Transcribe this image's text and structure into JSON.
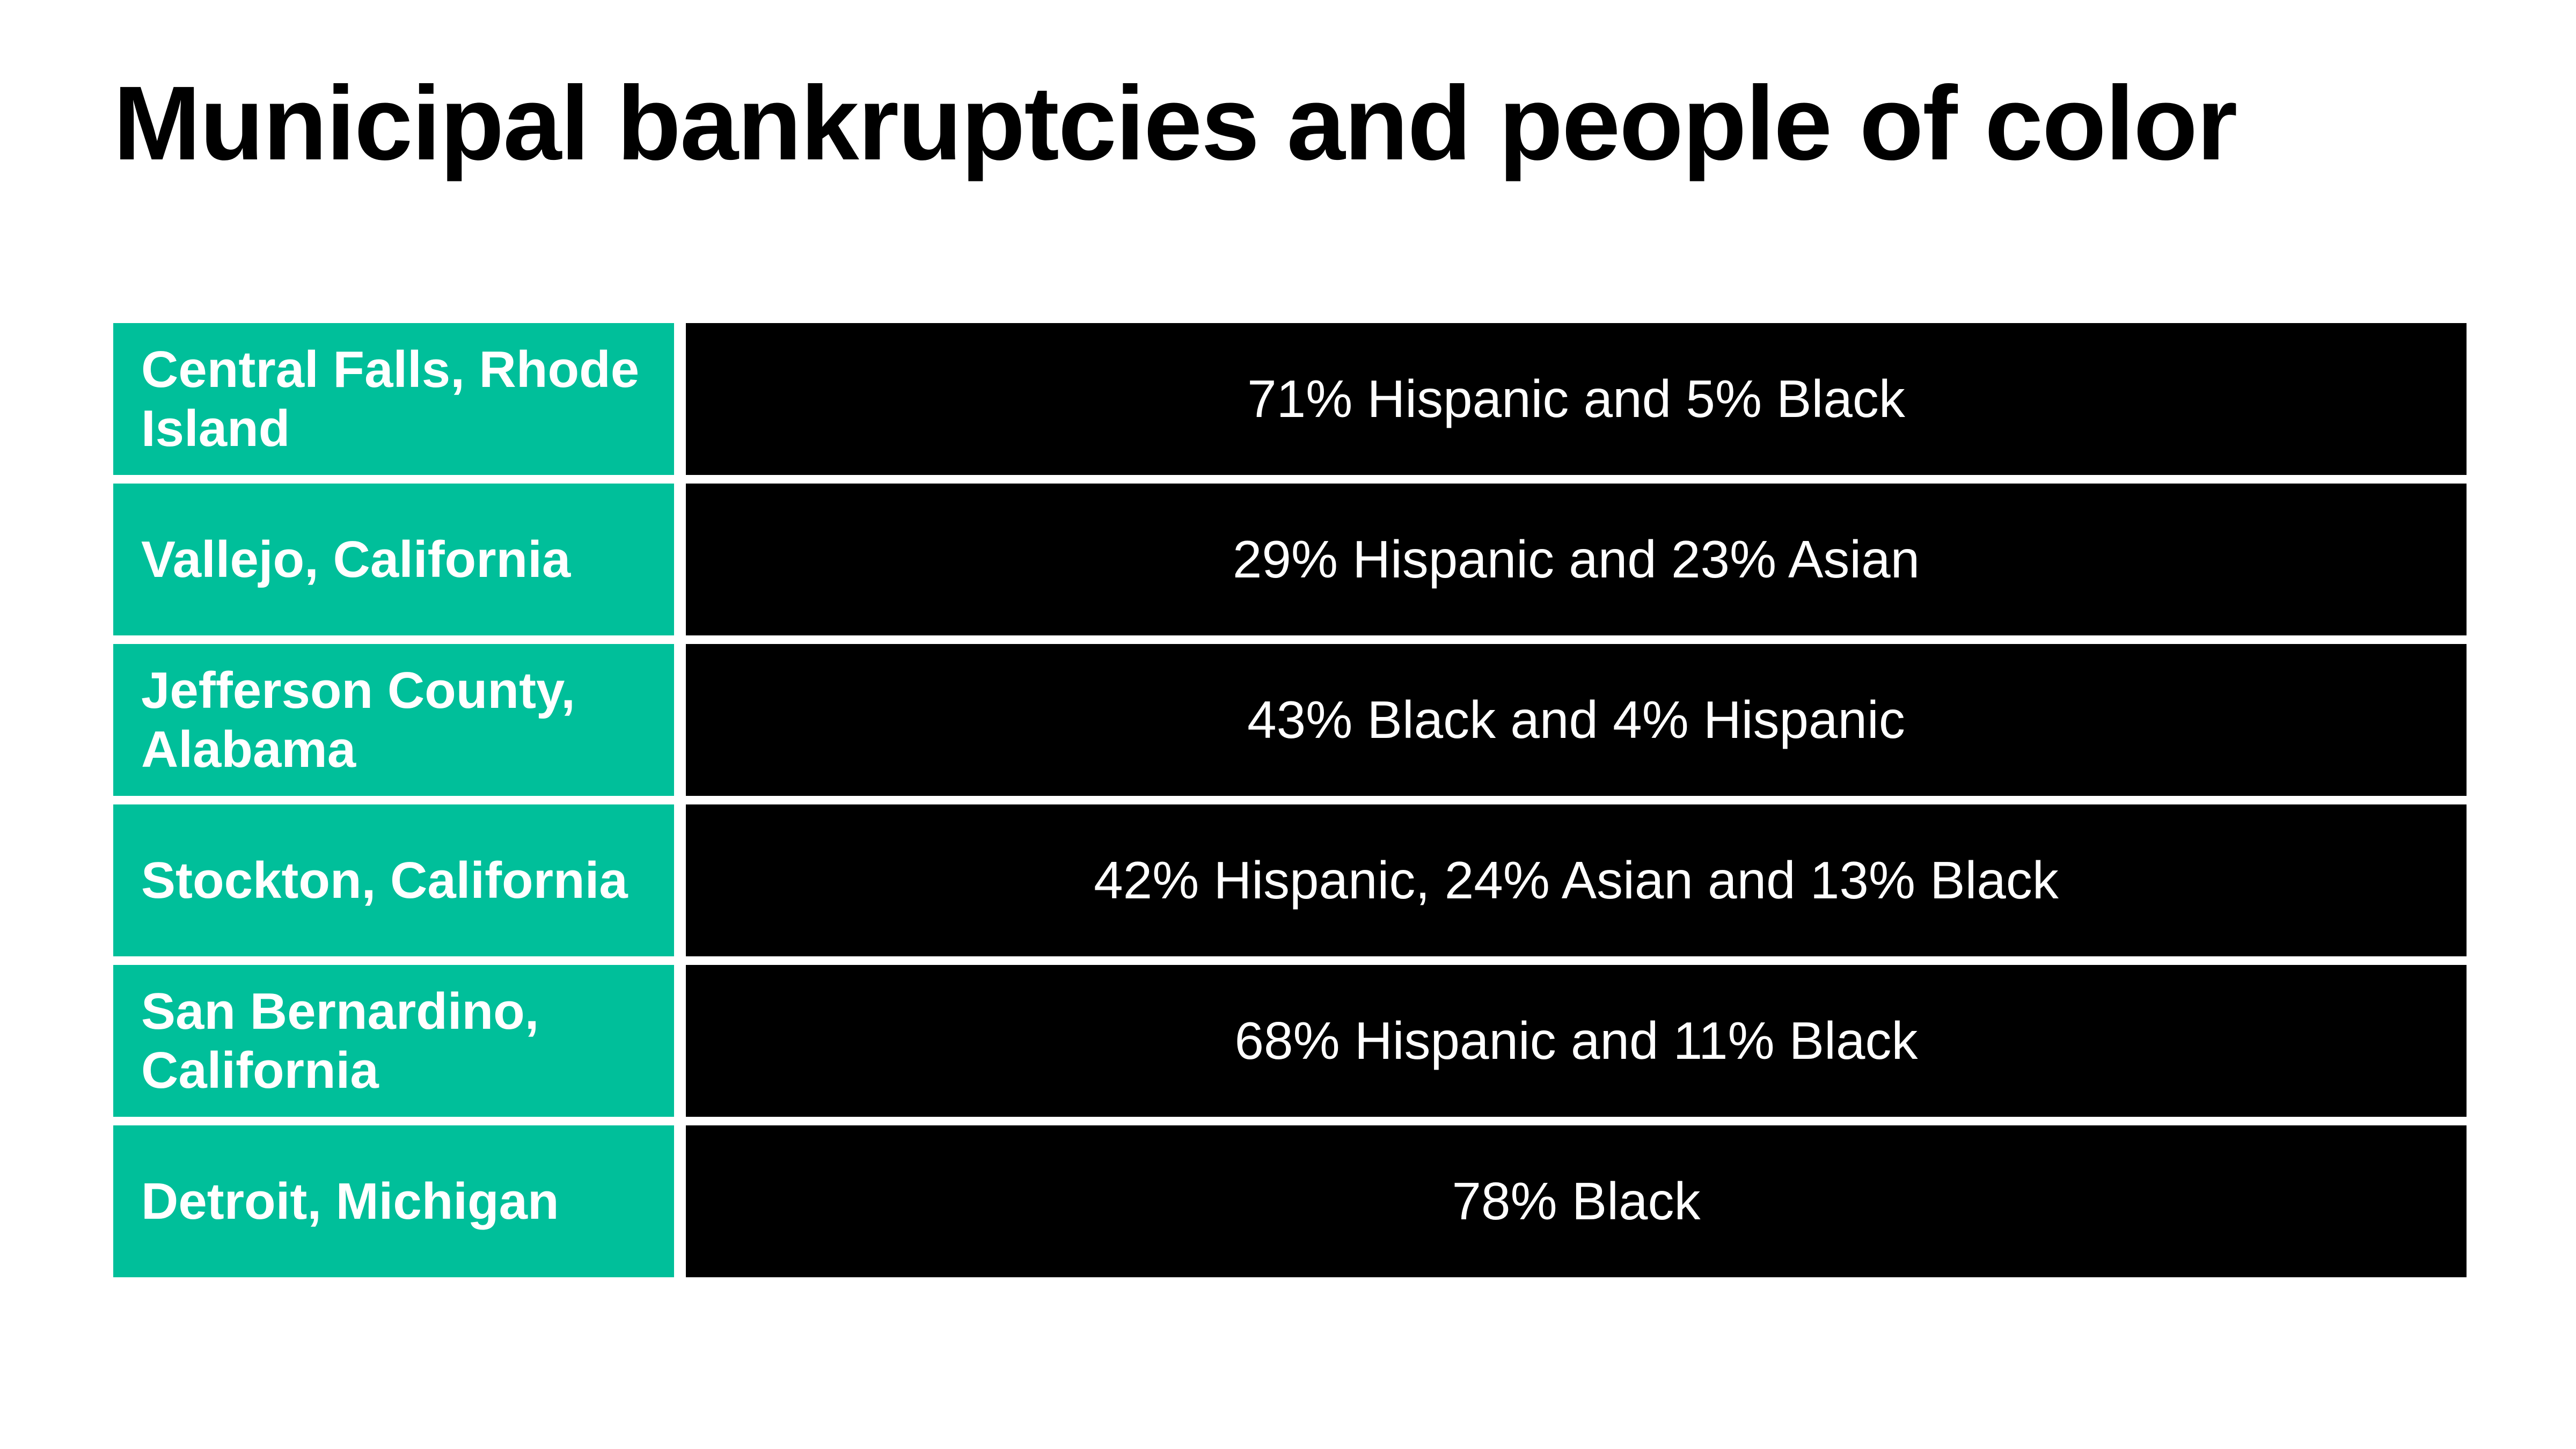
{
  "title": "Municipal bankruptcies and people of color",
  "colors": {
    "location_cell": "#00bf9a",
    "demographics_cell": "#000000",
    "text": "#ffffff",
    "title": "#000000"
  },
  "rows": [
    {
      "location": "Central Falls, Rhode Island",
      "demographics": "71% Hispanic and 5% Black"
    },
    {
      "location": "Vallejo, California",
      "demographics": "29% Hispanic and 23% Asian"
    },
    {
      "location": "Jefferson County, Alabama",
      "demographics": "43% Black and 4% Hispanic"
    },
    {
      "location": "Stockton, California",
      "demographics": "42% Hispanic, 24% Asian and 13% Black"
    },
    {
      "location": "San Bernardino, California",
      "demographics": "68% Hispanic and 11% Black"
    },
    {
      "location": "Detroit, Michigan",
      "demographics": "78% Black"
    }
  ],
  "chart_data": {
    "type": "table",
    "title": "Municipal bankruptcies and people of color",
    "columns": [
      "",
      ""
    ],
    "rows": [
      [
        "Central Falls, Rhode Island",
        "71% Hispanic and 5% Black"
      ],
      [
        "Vallejo, California",
        "29% Hispanic and 23% Asian"
      ],
      [
        "Jefferson County, Alabama",
        "43% Black and 4% Hispanic"
      ],
      [
        "Stockton, California",
        "42% Hispanic, 24% Asian and 13% Black"
      ],
      [
        "San Bernardino, California",
        "68% Hispanic and 11% Black"
      ],
      [
        "Detroit, Michigan",
        "78% Black"
      ]
    ]
  }
}
